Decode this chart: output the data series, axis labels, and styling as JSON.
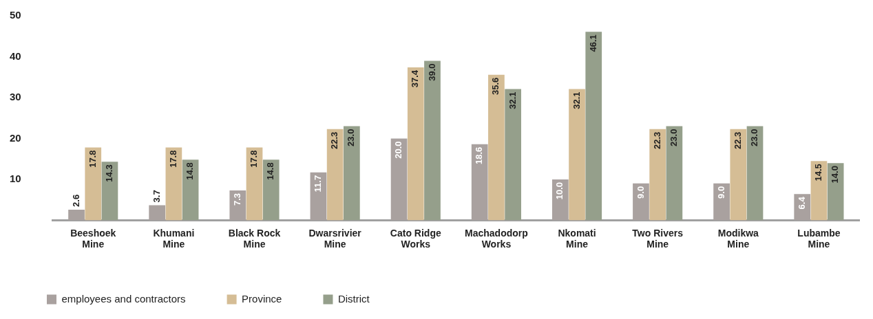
{
  "chart_data": {
    "type": "bar",
    "categories": [
      "Beeshoek Mine",
      "Khumani Mine",
      "Black Rock Mine",
      "Dwarsrivier Mine",
      "Cato Ridge Works",
      "Machadodorp Works",
      "Nkomati Mine",
      "Two Rivers Mine",
      "Modikwa Mine",
      "Lubambe Mine"
    ],
    "series": [
      {
        "name": "employees and contractors",
        "color": "#a9a19f",
        "values": [
          2.6,
          3.7,
          7.3,
          11.7,
          20.0,
          18.6,
          10.0,
          9.0,
          9.0,
          6.4
        ],
        "value_labels": [
          "2.6",
          "3.7",
          "7.3",
          "11.7",
          "20.0",
          "18.6",
          "10.0",
          "9.0",
          "9.0",
          "6.4"
        ]
      },
      {
        "name": "Province",
        "color": "#d5bd95",
        "values": [
          17.8,
          17.8,
          17.8,
          22.3,
          37.4,
          35.6,
          32.1,
          22.3,
          22.3,
          14.5
        ],
        "value_labels": [
          "17.8",
          "17.8",
          "17.8",
          "22.3",
          "37.4",
          "35.6",
          "32.1",
          "22.3",
          "22.3",
          "14.5"
        ]
      },
      {
        "name": "District",
        "color": "#959f8b",
        "values": [
          14.3,
          14.8,
          14.8,
          23.0,
          39.0,
          32.1,
          46.1,
          23.0,
          23.0,
          14.0
        ],
        "value_labels": [
          "14.3",
          "14.8",
          "14.8",
          "23.0",
          "39.0",
          "32.1",
          "46.1",
          "23.0",
          "23.0",
          "14.0"
        ]
      }
    ],
    "ylim": [
      0,
      50
    ],
    "yticks": [
      10,
      20,
      30,
      40,
      50
    ],
    "grid": false,
    "legend": "bottom left"
  }
}
